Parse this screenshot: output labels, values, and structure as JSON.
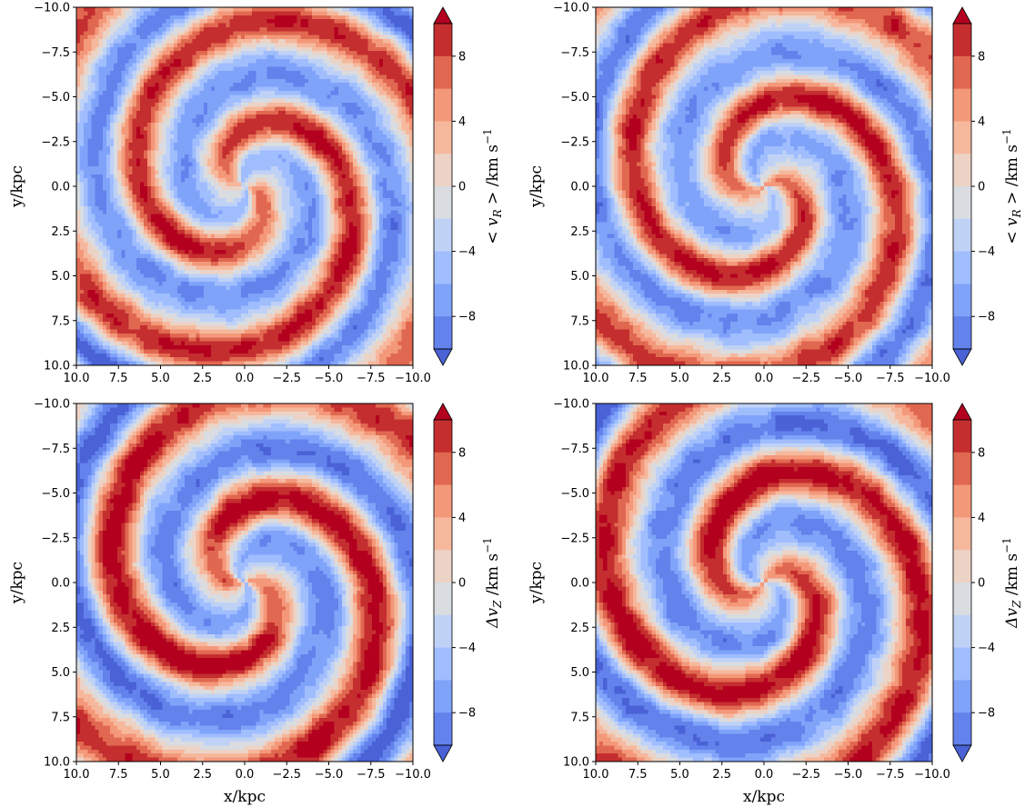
{
  "chart_data": [
    {
      "type": "contourf",
      "panel": "top-left",
      "field": "mean radial velocity",
      "xlabel": "",
      "ylabel": "y/kpc",
      "xlim": [
        10.0,
        -10.0
      ],
      "ylim": [
        10.0,
        -10.0
      ],
      "xticks": [
        "10.0",
        "7.5",
        "5.0",
        "2.5",
        "0.0",
        "−2.5",
        "−5.0",
        "−7.5",
        "−10.0"
      ],
      "yticks": [
        "−10.0",
        "−7.5",
        "−5.0",
        "−2.5",
        "0.0",
        "2.5",
        "5.0",
        "7.5",
        "10.0"
      ],
      "colorbar": {
        "label": "< v_R > /km s⁻¹",
        "label_main": "< v",
        "label_sub": "R",
        "label_rest": " > /km s",
        "label_sup": "−1",
        "ticks": [
          "8",
          "4",
          "0",
          "−4",
          "−8"
        ],
        "levels": [
          -10,
          -8,
          -6,
          -4,
          -2,
          0,
          2,
          4,
          6,
          8,
          10
        ],
        "extend": "both",
        "colormap": "coolwarm"
      },
      "pattern": {
        "arms": 2,
        "twist": 1.0,
        "amplitude": 9,
        "phase": 0.4,
        "secondary_amplitude": 3
      }
    },
    {
      "type": "contourf",
      "panel": "top-right",
      "field": "mean radial velocity",
      "xlabel": "",
      "ylabel": "y/kpc",
      "xlim": [
        10.0,
        -10.0
      ],
      "ylim": [
        10.0,
        -10.0
      ],
      "xticks": [
        "10.0",
        "7.5",
        "5.0",
        "2.5",
        "0.0",
        "−2.5",
        "−5.0",
        "−7.5",
        "−10.0"
      ],
      "yticks": [
        "−10.0",
        "−7.5",
        "−5.0",
        "−2.5",
        "0.0",
        "2.5",
        "5.0",
        "7.5",
        "10.0"
      ],
      "colorbar": {
        "label": "< v_R > /km s⁻¹",
        "label_main": "< v",
        "label_sub": "R",
        "label_rest": " > /km s",
        "label_sup": "−1",
        "ticks": [
          "8",
          "4",
          "0",
          "−4",
          "−8"
        ],
        "levels": [
          -10,
          -8,
          -6,
          -4,
          -2,
          0,
          2,
          4,
          6,
          8,
          10
        ],
        "extend": "both",
        "colormap": "coolwarm"
      },
      "pattern": {
        "arms": 2,
        "twist": 1.0,
        "amplitude": 9,
        "phase": 2.0,
        "secondary_amplitude": 3
      }
    },
    {
      "type": "contourf",
      "panel": "bottom-left",
      "field": "vertical velocity difference",
      "xlabel": "x/kpc",
      "ylabel": "y/kpc",
      "xlim": [
        10.0,
        -10.0
      ],
      "ylim": [
        10.0,
        -10.0
      ],
      "xticks": [
        "10.0",
        "7.5",
        "5.0",
        "2.5",
        "0.0",
        "−2.5",
        "−5.0",
        "−7.5",
        "−10.0"
      ],
      "yticks": [
        "−10.0",
        "−7.5",
        "−5.0",
        "−2.5",
        "0.0",
        "2.5",
        "5.0",
        "7.5",
        "10.0"
      ],
      "colorbar": {
        "label": "Δv_Z /km s⁻¹",
        "label_main": "Δv",
        "label_sub": "Z",
        "label_rest": " /km s",
        "label_sup": "−1",
        "ticks": [
          "8",
          "4",
          "0",
          "−4",
          "−8"
        ],
        "levels": [
          -10,
          -8,
          -6,
          -4,
          -2,
          0,
          2,
          4,
          6,
          8,
          10
        ],
        "extend": "both",
        "colormap": "coolwarm"
      },
      "pattern": {
        "arms": 2,
        "twist": 0.9,
        "amplitude": 10,
        "phase": 1.1,
        "secondary_amplitude": 3
      }
    },
    {
      "type": "contourf",
      "panel": "bottom-right",
      "field": "vertical velocity difference",
      "xlabel": "x/kpc",
      "ylabel": "y/kpc",
      "xlim": [
        10.0,
        -10.0
      ],
      "ylim": [
        10.0,
        -10.0
      ],
      "xticks": [
        "10.0",
        "7.5",
        "5.0",
        "2.5",
        "0.0",
        "−2.5",
        "−5.0",
        "−7.5",
        "−10.0"
      ],
      "yticks": [
        "−10.0",
        "−7.5",
        "−5.0",
        "−2.5",
        "0.0",
        "2.5",
        "5.0",
        "7.5",
        "10.0"
      ],
      "colorbar": {
        "label": "Δv_Z /km s⁻¹",
        "label_main": "Δv",
        "label_sub": "Z",
        "label_rest": " /km s",
        "label_sup": "−1",
        "ticks": [
          "8",
          "4",
          "0",
          "−4",
          "−8"
        ],
        "levels": [
          -10,
          -8,
          -6,
          -4,
          -2,
          0,
          2,
          4,
          6,
          8,
          10
        ],
        "extend": "both",
        "colormap": "coolwarm"
      },
      "pattern": {
        "arms": 2,
        "twist": 0.9,
        "amplitude": 10,
        "phase": 2.6,
        "secondary_amplitude": 3
      }
    }
  ],
  "colormap_colors": [
    "#4a62d6",
    "#6382ec",
    "#80a3fa",
    "#a0bdfe",
    "#bfd2f6",
    "#d9dce1",
    "#ecd3c5",
    "#f6b89d",
    "#f4987a",
    "#e16850",
    "#c42e2f",
    "#b3001f"
  ]
}
